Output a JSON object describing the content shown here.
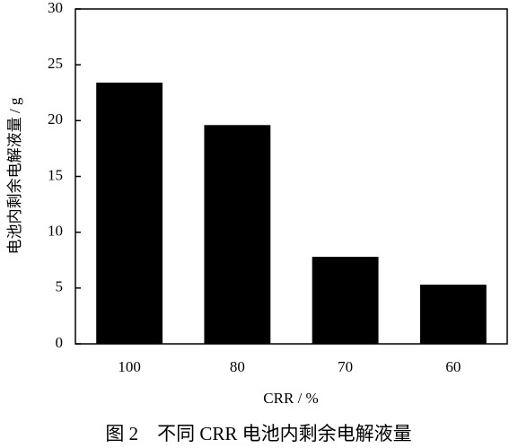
{
  "chart_data": {
    "type": "bar",
    "caption": "图 2　不同 CRR 电池内剩余电解液量",
    "x_label": "CRR / %",
    "y_label": "电池内剩余电解液量 / g",
    "categories": [
      "100",
      "80",
      "70",
      "60"
    ],
    "values": [
      23.4,
      19.6,
      7.8,
      5.3
    ],
    "color": "#000000",
    "ylim": [
      0,
      30
    ],
    "yticks": [
      0,
      5,
      10,
      15,
      20,
      25,
      30
    ],
    "grid": false
  }
}
